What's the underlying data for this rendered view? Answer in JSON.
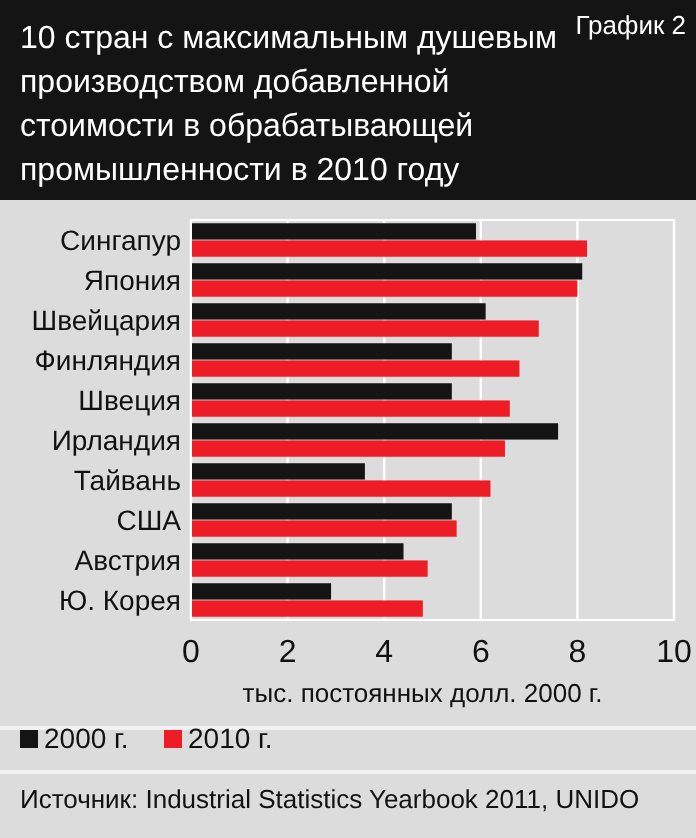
{
  "chart_data": {
    "type": "bar",
    "orientation": "horizontal",
    "title": "10 стран с максимальным душевым производством добавленной стоимости в обрабатывающей промышленности в 2010 году",
    "xlabel": "тыс. постоянных долл. 2000 г.",
    "annotations": [
      "График 2",
      "Источник: Industrial Statistics Yearbook 2011, UNIDO"
    ],
    "categories": [
      "Сингапур",
      "Япония",
      "Швейцария",
      "Финляндия",
      "Швеция",
      "Ирландия",
      "Тайвань",
      "США",
      "Австрия",
      "Ю. Корея"
    ],
    "series": [
      {
        "name": "2000 г.",
        "color": "#141414",
        "values": [
          5.9,
          8.1,
          6.1,
          5.4,
          5.4,
          7.6,
          3.6,
          5.4,
          4.4,
          2.9
        ]
      },
      {
        "name": "2010 г.",
        "color": "#ee1c25",
        "values": [
          8.2,
          8.0,
          7.2,
          6.8,
          6.6,
          6.5,
          6.2,
          5.5,
          4.9,
          4.8
        ]
      }
    ],
    "xlim": [
      0,
      10
    ],
    "xticks": [
      0,
      2,
      4,
      6,
      8,
      10
    ],
    "grid": "x",
    "legend": "bottom"
  }
}
